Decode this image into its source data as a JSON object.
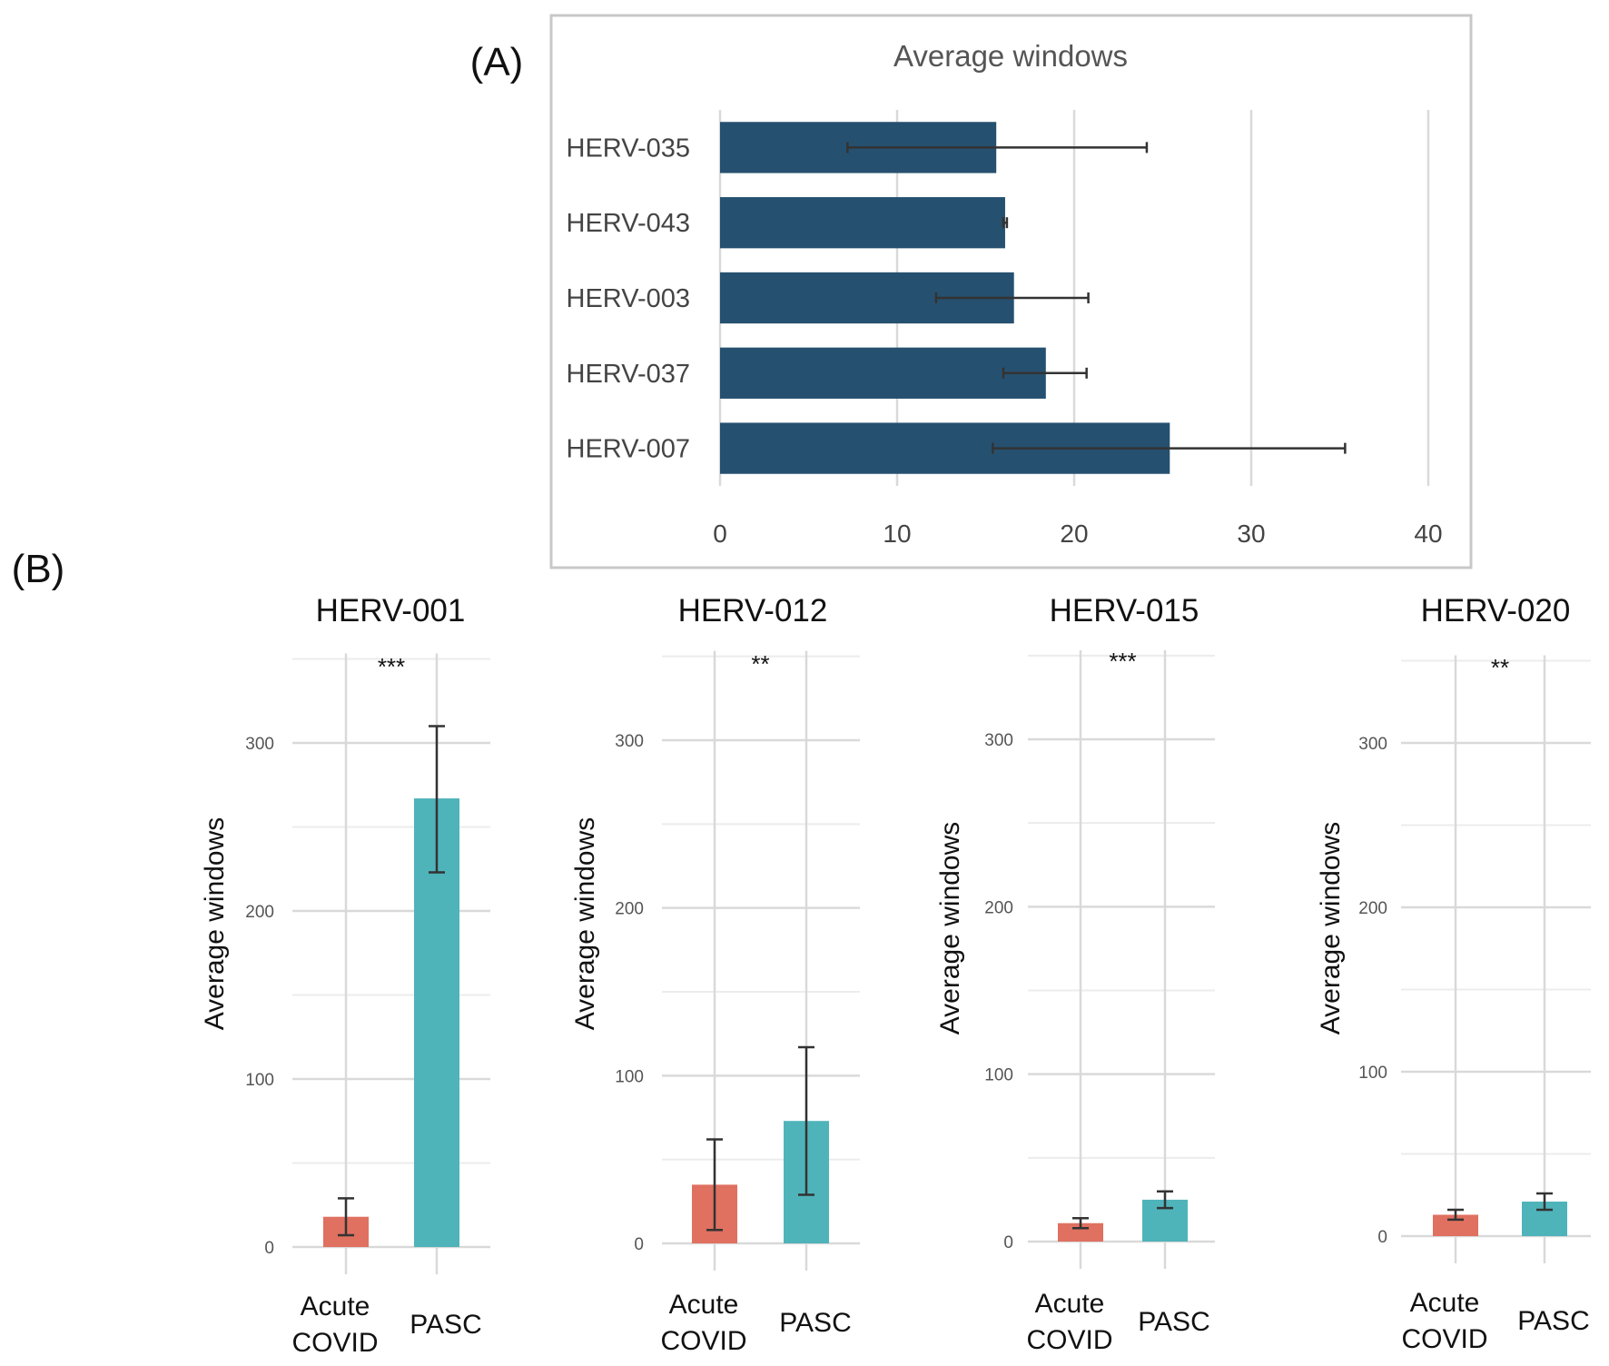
{
  "panel_a_label": "(A)",
  "panel_b_label": "(B)",
  "colors": {
    "bar_a": "#26506f",
    "acute": "#e07060",
    "pasc": "#4fb3ba",
    "grid": "#d9d9d9",
    "frame": "#c8c8c8"
  },
  "chart_data": [
    {
      "type": "bar",
      "orientation": "horizontal",
      "title": "Average windows",
      "categories": [
        "HERV-035",
        "HERV-043",
        "HERV-003",
        "HERV-037",
        "HERV-007"
      ],
      "values": [
        15.6,
        16.1,
        16.6,
        18.4,
        25.4
      ],
      "error_low": [
        7.2,
        16.0,
        12.2,
        16.0,
        15.4
      ],
      "error_high": [
        24.1,
        16.2,
        20.8,
        20.7,
        35.3
      ],
      "xlim": [
        0,
        40
      ],
      "xticks": [
        0,
        10,
        20,
        30,
        40
      ],
      "grid": "vertical"
    },
    {
      "type": "bar",
      "title": "HERV-001",
      "ylabel": "Average windows",
      "categories": [
        "Acute COVID",
        "PASC"
      ],
      "values": [
        18,
        267
      ],
      "error_low": [
        7,
        223
      ],
      "error_high": [
        29,
        310
      ],
      "significance": "***",
      "ylim": [
        0,
        350
      ],
      "yticks": [
        0,
        100,
        200,
        300
      ]
    },
    {
      "type": "bar",
      "title": "HERV-012",
      "ylabel": "Average windows",
      "categories": [
        "Acute COVID",
        "PASC"
      ],
      "values": [
        35,
        73
      ],
      "error_low": [
        8,
        29
      ],
      "error_high": [
        62,
        117
      ],
      "significance": "**",
      "ylim": [
        0,
        350
      ],
      "yticks": [
        0,
        100,
        200,
        300
      ]
    },
    {
      "type": "bar",
      "title": "HERV-015",
      "ylabel": "Average windows",
      "categories": [
        "Acute COVID",
        "PASC"
      ],
      "values": [
        11,
        25
      ],
      "error_low": [
        8,
        20
      ],
      "error_high": [
        14,
        30
      ],
      "significance": "***",
      "ylim": [
        0,
        350
      ],
      "yticks": [
        0,
        100,
        200,
        300
      ]
    },
    {
      "type": "bar",
      "title": "HERV-020",
      "ylabel": "Average windows",
      "categories": [
        "Acute COVID",
        "PASC"
      ],
      "values": [
        13,
        21
      ],
      "error_low": [
        10,
        16
      ],
      "error_high": [
        16,
        26
      ],
      "significance": "**",
      "ylim": [
        0,
        350
      ],
      "yticks": [
        0,
        100,
        200,
        300
      ]
    }
  ]
}
